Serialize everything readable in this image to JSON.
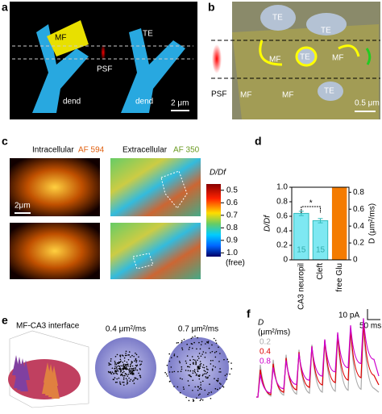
{
  "panels": {
    "a": {
      "label": "a",
      "mf": "MF",
      "te": "TE",
      "psf": "PSF",
      "dend_left": "dend",
      "dend_right": "dend",
      "scale": "2 μm"
    },
    "b": {
      "label": "b",
      "te1": "TE",
      "te2": "TE",
      "te3": "TE",
      "te4": "TE",
      "mf1": "MF",
      "mf2": "MF",
      "mf3": "MF",
      "mf4": "MF",
      "psf": "PSF",
      "scale": "0.5 μm"
    },
    "c": {
      "label": "c",
      "intra": "Intracellular",
      "intra_dye": "AF 594",
      "extra": "Extracellular",
      "extra_dye": "AF 350",
      "scale": "2μm",
      "colorbar_title": "D/Df",
      "colorbar_free": "(free)",
      "colorbar_ticks": [
        0.5,
        0.6,
        0.7,
        0.8,
        0.9,
        {
          "value": 1,
          "label": "1.0"
        }
      ],
      "colorbar_lim": [
        0.45,
        1.03
      ]
    },
    "e": {
      "label": "e",
      "interface": "MF-CA3 interface",
      "d1": "0.4 μm²/ms",
      "d2": "0.7 μm²/ms"
    },
    "f": {
      "label": "f",
      "amp_scale": "10 pA",
      "time_scale": "50 ms",
      "legend_title": "D",
      "legend_unit": "(μm²/ms)",
      "legend": [
        "0.2",
        "0.4",
        "0.8"
      ]
    }
  },
  "chart_data": {
    "type": "bar",
    "label": "d",
    "categories": [
      "CA3 neuropil",
      "Cleft",
      "free Glu"
    ],
    "ylabel": "D/Df",
    "y2label": "D (μm²/ms)",
    "ylim": [
      0,
      1
    ],
    "yticks": [
      0,
      0.2,
      0.4,
      0.6,
      0.8,
      {
        "value": 1,
        "label": "1.0"
      }
    ],
    "y2lim": [
      0,
      0.86
    ],
    "y2ticks": [
      0,
      0.2,
      0.4,
      0.6,
      0.8
    ],
    "series": [
      {
        "color": "#7ee8f2",
        "values": [
          0.64,
          0.54,
          null
        ],
        "errors": [
          0.03,
          0.03,
          null
        ],
        "n": [
          "15",
          "15",
          null
        ]
      },
      {
        "color": "#f47b00",
        "axis": "y2",
        "values": [
          null,
          null,
          0.86
        ]
      }
    ],
    "significance": "*"
  }
}
